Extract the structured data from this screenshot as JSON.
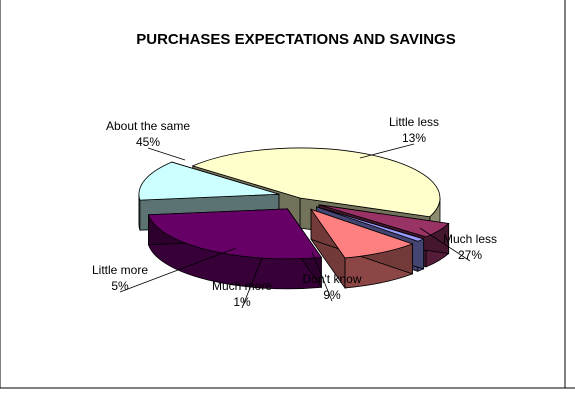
{
  "chart_data": {
    "type": "pie",
    "title": "PURCHASES EXPECTATIONS AND SAVINGS",
    "slices": [
      {
        "name": "About the same",
        "value": 45,
        "label": "45%",
        "color": "#ffffcc",
        "exploded": false
      },
      {
        "name": "Little less",
        "value": 13,
        "label": "13%",
        "color": "#ccffff",
        "exploded": true
      },
      {
        "name": "Much less",
        "value": 27,
        "label": "27%",
        "color": "#660066",
        "exploded": true
      },
      {
        "name": "Don't know",
        "value": 9,
        "label": "9%",
        "color": "#ff8080",
        "exploded": true
      },
      {
        "name": "Much more",
        "value": 1,
        "label": "1%",
        "color": "#9999ff",
        "exploded": true
      },
      {
        "name": "Little more",
        "value": 5,
        "label": "5%",
        "color": "#993366",
        "exploded": true
      }
    ],
    "three_d": true
  }
}
